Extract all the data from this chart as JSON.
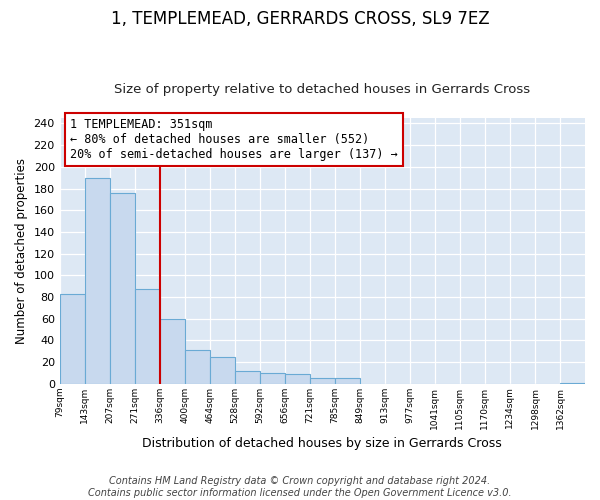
{
  "title": "1, TEMPLEMEAD, GERRARDS CROSS, SL9 7EZ",
  "subtitle": "Size of property relative to detached houses in Gerrards Cross",
  "xlabel": "Distribution of detached houses by size in Gerrards Cross",
  "ylabel": "Number of detached properties",
  "bin_labels": [
    "79sqm",
    "143sqm",
    "207sqm",
    "271sqm",
    "336sqm",
    "400sqm",
    "464sqm",
    "528sqm",
    "592sqm",
    "656sqm",
    "721sqm",
    "785sqm",
    "849sqm",
    "913sqm",
    "977sqm",
    "1041sqm",
    "1105sqm",
    "1170sqm",
    "1234sqm",
    "1298sqm",
    "1362sqm"
  ],
  "bar_values": [
    83,
    190,
    176,
    87,
    60,
    31,
    25,
    12,
    10,
    9,
    5,
    5,
    0,
    0,
    0,
    0,
    0,
    0,
    0,
    0,
    1
  ],
  "bar_color": "#c8d9ee",
  "bar_edge_color": "#6aaad4",
  "vline_x_bin": 4,
  "vline_color": "#cc0000",
  "annotation_line1": "1 TEMPLEMEAD: 351sqm",
  "annotation_line2": "← 80% of detached houses are smaller (552)",
  "annotation_line3": "20% of semi-detached houses are larger (137) →",
  "annotation_box_color": "white",
  "annotation_box_edge": "#cc0000",
  "ylim": [
    0,
    245
  ],
  "yticks": [
    0,
    20,
    40,
    60,
    80,
    100,
    120,
    140,
    160,
    180,
    200,
    220,
    240
  ],
  "footnote_line1": "Contains HM Land Registry data © Crown copyright and database right 2024.",
  "footnote_line2": "Contains public sector information licensed under the Open Government Licence v3.0.",
  "background_color": "#dde8f4",
  "grid_color": "white",
  "title_fontsize": 12,
  "subtitle_fontsize": 9.5,
  "xlabel_fontsize": 9,
  "ylabel_fontsize": 8.5,
  "annotation_fontsize": 8.5,
  "footnote_fontsize": 7
}
